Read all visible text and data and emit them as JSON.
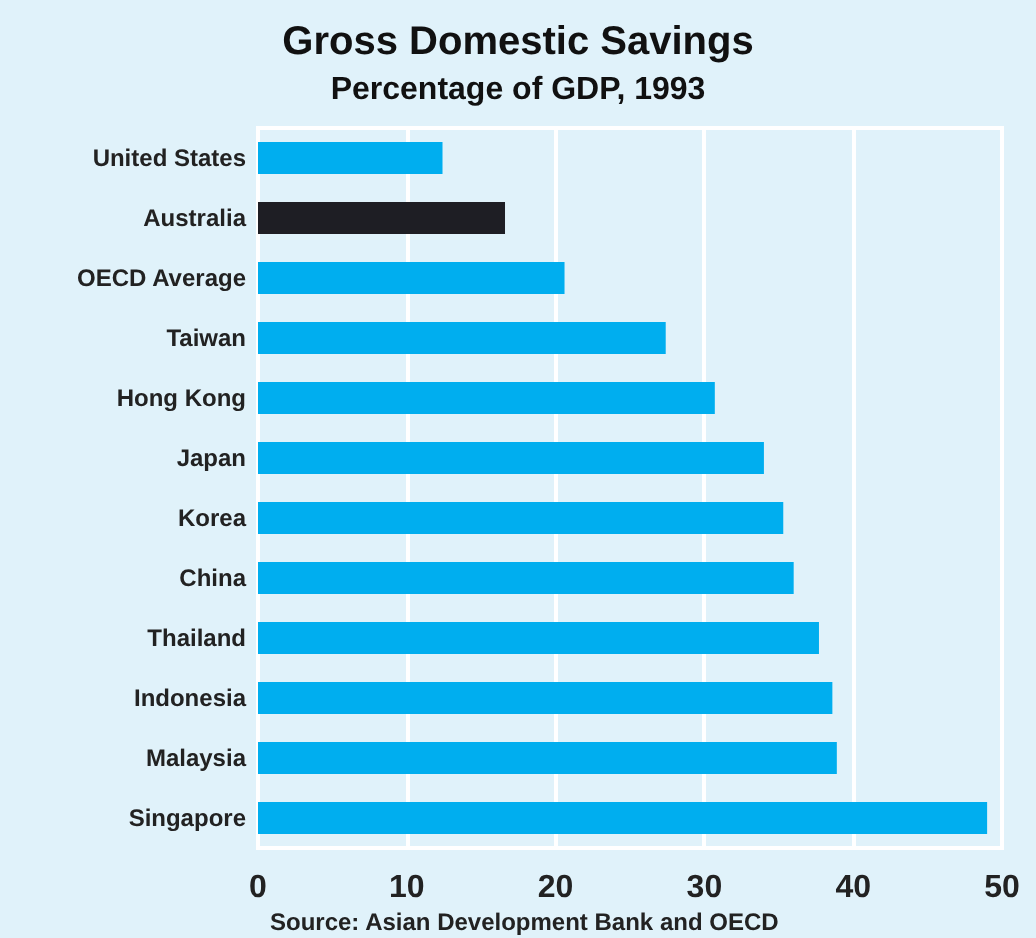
{
  "chart_data": {
    "type": "bar",
    "orientation": "horizontal",
    "title": "Gross Domestic Savings",
    "subtitle": "Percentage of GDP, 1993",
    "categories": [
      "United States",
      "Australia",
      "OECD Average",
      "Taiwan",
      "Hong Kong",
      "Japan",
      "Korea",
      "China",
      "Thailand",
      "Indonesia",
      "Malaysia",
      "Singapore"
    ],
    "values": [
      12.4,
      16.6,
      20.6,
      27.4,
      30.7,
      34.0,
      35.3,
      36.0,
      37.7,
      38.6,
      38.9,
      49.0
    ],
    "colors": [
      "#00aeef",
      "#1e1e24",
      "#00aeef",
      "#00aeef",
      "#00aeef",
      "#00aeef",
      "#00aeef",
      "#00aeef",
      "#00aeef",
      "#00aeef",
      "#00aeef",
      "#00aeef"
    ],
    "xlim": [
      0,
      50
    ],
    "xticks": [
      0,
      10,
      20,
      30,
      40,
      50
    ],
    "grid": "x",
    "annotations": [
      "Source: Asian Development Bank and OECD"
    ]
  }
}
